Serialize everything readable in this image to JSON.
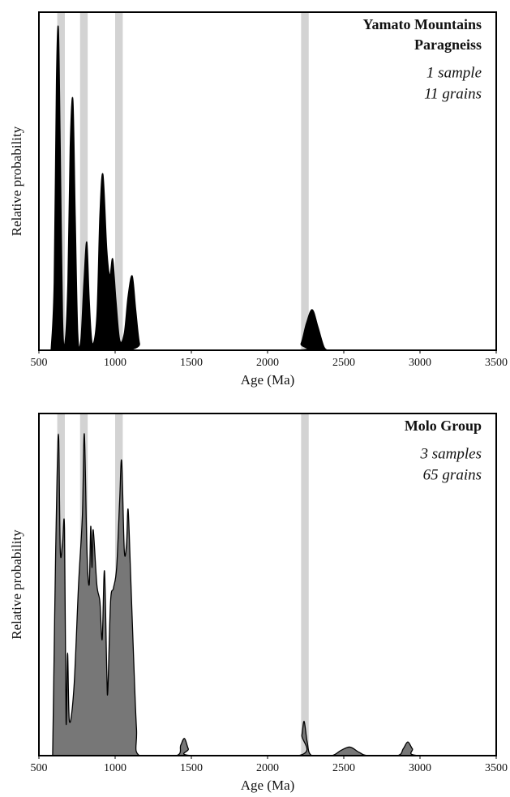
{
  "chart_data": [
    {
      "type": "area",
      "title_lines": [
        "Yamato Mountains",
        "Paragneiss"
      ],
      "annotations": [
        "1 sample",
        "11 grains"
      ],
      "x_label": "Age (Ma)",
      "y_label": "Relative probability",
      "color": "#000000",
      "band_color": "#d3d3d3",
      "bands": [
        [
          620,
          670
        ],
        [
          770,
          820
        ],
        [
          1000,
          1050
        ],
        [
          2220,
          2270
        ]
      ],
      "xlim": [
        500,
        3500
      ],
      "xticks": [
        500,
        1000,
        1500,
        2000,
        2500,
        3000,
        3500
      ],
      "ylim": [
        0,
        1
      ],
      "x": [
        580,
        600,
        615,
        628,
        640,
        655,
        670,
        690,
        705,
        723,
        738,
        755,
        775,
        795,
        814,
        830,
        850,
        880,
        900,
        920,
        945,
        965,
        984,
        1005,
        1030,
        1060,
        1085,
        1112,
        1135,
        1160,
        1190,
        2180,
        2220,
        2255,
        2293,
        2330,
        2370,
        2400
      ],
      "values": [
        0,
        0.2,
        0.8,
        0.95,
        0.6,
        0.1,
        0.02,
        0.2,
        0.6,
        0.74,
        0.4,
        0.05,
        0.03,
        0.2,
        0.32,
        0.15,
        0.02,
        0.1,
        0.4,
        0.52,
        0.3,
        0.22,
        0.27,
        0.15,
        0.03,
        0.05,
        0.16,
        0.22,
        0.12,
        0.02,
        0,
        0,
        0.02,
        0.08,
        0.12,
        0.07,
        0.01,
        0
      ]
    },
    {
      "type": "area",
      "title_lines": [
        "Molo Group"
      ],
      "annotations": [
        "3 samples",
        "65 grains"
      ],
      "x_label": "Age (Ma)",
      "y_label": "Relative probability",
      "color": "#777777",
      "band_color": "#d3d3d3",
      "bands": [
        [
          620,
          670
        ],
        [
          770,
          820
        ],
        [
          1000,
          1050
        ],
        [
          2220,
          2270
        ]
      ],
      "xlim": [
        500,
        3500
      ],
      "xticks": [
        500,
        1000,
        1500,
        2000,
        2500,
        3000,
        3500
      ],
      "ylim": [
        0,
        1
      ],
      "x": [
        590,
        600,
        610,
        628,
        640,
        655,
        668,
        678,
        688,
        700,
        730,
        760,
        785,
        798,
        815,
        830,
        840,
        848,
        856,
        880,
        900,
        915,
        930,
        945,
        952,
        970,
        989,
        1010,
        1030,
        1043,
        1060,
        1075,
        1085,
        1100,
        1120,
        1140,
        1160,
        1400,
        1430,
        1455,
        1480,
        1510,
        2200,
        2225,
        2240,
        2260,
        2290,
        2420,
        2480,
        2540,
        2600,
        2660,
        2850,
        2890,
        2920,
        2950,
        2990,
        3500
      ],
      "values": [
        0,
        0.3,
        0.6,
        0.94,
        0.6,
        0.62,
        0.66,
        0.1,
        0.3,
        0.1,
        0.2,
        0.5,
        0.7,
        0.94,
        0.6,
        0.5,
        0.67,
        0.55,
        0.66,
        0.5,
        0.45,
        0.34,
        0.54,
        0.25,
        0.19,
        0.45,
        0.49,
        0.55,
        0.75,
        0.86,
        0.6,
        0.62,
        0.72,
        0.55,
        0.3,
        0.08,
        0,
        0,
        0.03,
        0.05,
        0.02,
        0,
        0,
        0.06,
        0.1,
        0.04,
        0,
        0,
        0.015,
        0.025,
        0.01,
        0,
        0,
        0.02,
        0.04,
        0.02,
        0,
        0
      ]
    }
  ]
}
